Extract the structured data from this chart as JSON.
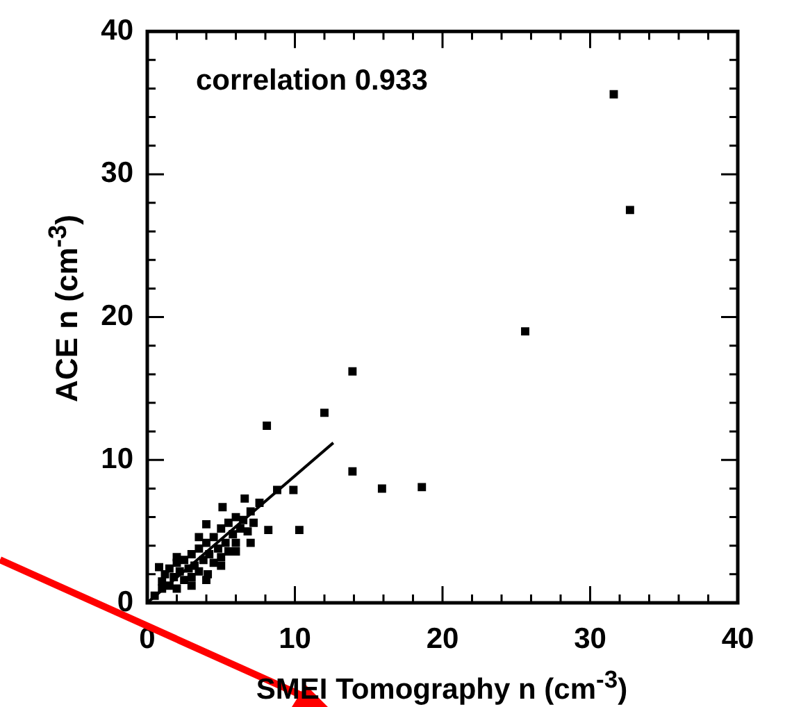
{
  "chart_data": {
    "type": "scatter",
    "xlabel": "SMEI Tomography n (cm$^{-3}$)",
    "ylabel": "ACE n (cm$^{-3}$)",
    "annotations": [
      "correlation 0.933"
    ],
    "xlim": [
      0,
      40
    ],
    "ylim": [
      0,
      40
    ],
    "xticks": [
      0,
      {
        "value": 2,
        "label": null
      },
      {
        "value": 4,
        "label": null
      },
      {
        "value": 6,
        "label": null
      },
      {
        "value": 8,
        "label": null
      },
      10,
      {
        "value": 12,
        "label": null
      },
      {
        "value": 14,
        "label": null
      },
      {
        "value": 16,
        "label": null
      },
      {
        "value": 18,
        "label": null
      },
      20,
      {
        "value": 22,
        "label": null
      },
      {
        "value": 24,
        "label": null
      },
      {
        "value": 26,
        "label": null
      },
      {
        "value": 28,
        "label": null
      },
      30,
      {
        "value": 32,
        "label": null
      },
      {
        "value": 34,
        "label": null
      },
      {
        "value": 36,
        "label": null
      },
      {
        "value": 38,
        "label": null
      },
      40
    ],
    "yticks": [
      0,
      {
        "value": 2,
        "label": null
      },
      {
        "value": 4,
        "label": null
      },
      {
        "value": 6,
        "label": null
      },
      {
        "value": 8,
        "label": null
      },
      10,
      {
        "value": 12,
        "label": null
      },
      {
        "value": 14,
        "label": null
      },
      {
        "value": 16,
        "label": null
      },
      {
        "value": 18,
        "label": null
      },
      20,
      {
        "value": 22,
        "label": null
      },
      {
        "value": 24,
        "label": null
      },
      {
        "value": 26,
        "label": null
      },
      {
        "value": 28,
        "label": null
      },
      30,
      {
        "value": 32,
        "label": null
      },
      {
        "value": 34,
        "label": null
      },
      {
        "value": 36,
        "label": null
      },
      {
        "value": 38,
        "label": null
      },
      40
    ],
    "grid": false,
    "legend": false,
    "marker": "square",
    "series": [
      {
        "color": "#000000",
        "x": [
          31.6,
          32.7,
          25.6,
          13.9,
          12.0,
          8.1,
          13.9,
          15.9,
          18.6,
          10.3,
          8.2,
          8.8,
          9.9,
          4.0,
          5.1,
          6.6,
          7.6,
          0.5,
          0.8,
          1.0,
          1.2,
          1.5,
          1.5,
          1.8,
          2.0,
          2.0,
          2.2,
          2.5,
          2.5,
          2.8,
          3.0,
          3.0,
          3.2,
          3.5,
          3.5,
          3.8,
          4.0,
          4.0,
          4.2,
          4.5,
          4.5,
          4.8,
          5.0,
          5.0,
          5.3,
          5.5,
          5.5,
          5.8,
          6.0,
          6.0,
          6.3,
          6.5,
          6.8,
          7.0,
          7.2,
          3.0,
          2.0,
          4.1,
          1.0,
          6.0,
          5.0,
          3.5,
          7.0
        ],
        "values": [
          35.6,
          27.5,
          19.0,
          16.2,
          13.3,
          12.4,
          9.2,
          8.0,
          8.1,
          5.1,
          5.1,
          7.9,
          7.9,
          5.5,
          6.7,
          7.3,
          7.0,
          0.5,
          2.5,
          1.0,
          2.0,
          1.2,
          2.4,
          1.8,
          1.0,
          2.8,
          2.2,
          1.6,
          3.0,
          2.4,
          1.8,
          3.4,
          2.6,
          2.2,
          3.8,
          3.0,
          1.6,
          4.2,
          3.4,
          2.8,
          4.6,
          3.8,
          3.2,
          5.2,
          4.2,
          3.6,
          5.6,
          4.8,
          4.2,
          6.0,
          5.2,
          5.8,
          5.0,
          6.4,
          5.6,
          1.2,
          3.2,
          2.0,
          1.5,
          3.6,
          2.6,
          4.6,
          4.2
        ]
      },
      {
        "type": "line",
        "color": "#000000",
        "marker": "none",
        "x": [
          0,
          12.6
        ],
        "values": [
          0,
          11.2
        ]
      }
    ]
  }
}
